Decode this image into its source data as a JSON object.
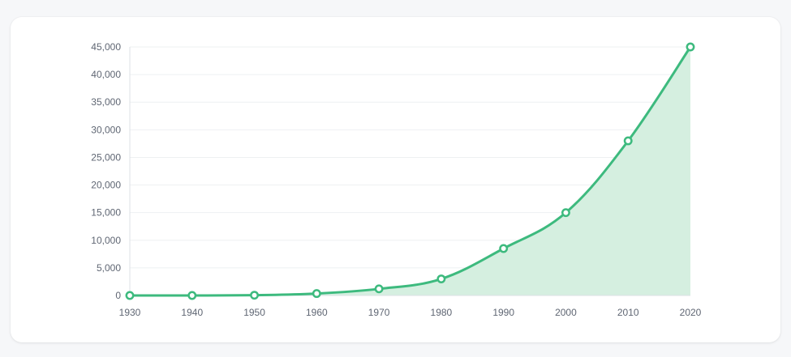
{
  "chart_data": {
    "type": "area",
    "title": "",
    "xlabel": "",
    "ylabel": "",
    "x": [
      1930,
      1940,
      1950,
      1960,
      1970,
      1980,
      1990,
      2000,
      2010,
      2020
    ],
    "series": [
      {
        "values": [
          0,
          0,
          50,
          350,
          1200,
          3000,
          8500,
          15000,
          28000,
          45000
        ]
      }
    ],
    "x_tick_labels": [
      "1930",
      "1940",
      "1950",
      "1960",
      "1970",
      "1980",
      "1990",
      "2000",
      "2010",
      "2020"
    ],
    "y_tick_values": [
      0,
      5000,
      10000,
      15000,
      20000,
      25000,
      30000,
      35000,
      40000,
      45000
    ],
    "y_tick_labels": [
      "0",
      "5,000",
      "10,000",
      "15,000",
      "20,000",
      "25,000",
      "30,000",
      "35,000",
      "40,000",
      "45,000"
    ],
    "xlim": [
      1930,
      2020
    ],
    "ylim": [
      0,
      45000
    ],
    "grid": true,
    "legend": "none",
    "colors": {
      "line": "#3dba7e",
      "area": "#d5efe0",
      "grid": "#eef0f2",
      "axis": "#dde1e5",
      "marker_fill": "#ffffff"
    }
  }
}
